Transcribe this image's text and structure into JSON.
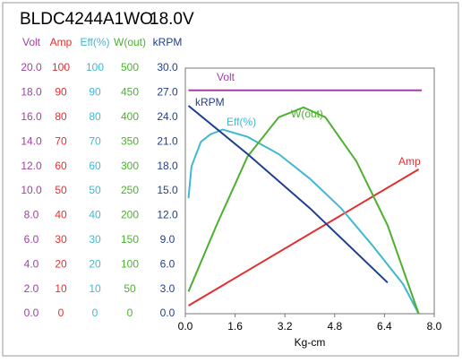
{
  "chart_data": {
    "type": "line",
    "title": "BLDC4244A1WO",
    "subtitle": "18.0V",
    "x_label": "Kg-cm",
    "xlim": [
      0,
      8
    ],
    "xticks": [
      {
        "value": 0,
        "label": "0.0"
      },
      1.6,
      3.2,
      4.8,
      6.4,
      {
        "value": 8,
        "label": "8.0"
      }
    ],
    "axes": [
      {
        "label": "Volt",
        "color": "#a040a0",
        "ylim": [
          0,
          20
        ],
        "yticks": [
          {
            "value": 0,
            "label": "0.0"
          },
          {
            "value": 2,
            "label": "2.0"
          },
          {
            "value": 4,
            "label": "4.0"
          },
          {
            "value": 6,
            "label": "6.0"
          },
          {
            "value": 8,
            "label": "8.0"
          },
          {
            "value": 10,
            "label": "10.0"
          },
          {
            "value": 12,
            "label": "12.0"
          },
          {
            "value": 14,
            "label": "14.0"
          },
          {
            "value": 16,
            "label": "16.0"
          },
          {
            "value": 18,
            "label": "18.0"
          },
          {
            "value": 20,
            "label": "20.0"
          }
        ]
      },
      {
        "label": "Amp",
        "color": "#e03030",
        "ylim": [
          0,
          100
        ],
        "yticks": [
          0,
          10,
          20,
          30,
          40,
          50,
          60,
          70,
          80,
          90,
          100
        ]
      },
      {
        "label": "Eff(%)",
        "color": "#40b8d0",
        "ylim": [
          0,
          100
        ],
        "yticks": [
          0,
          10,
          20,
          30,
          40,
          50,
          60,
          70,
          80,
          90,
          100
        ]
      },
      {
        "label": "W(out)",
        "color": "#4cb030",
        "ylim": [
          0,
          500
        ],
        "yticks": [
          0,
          50,
          100,
          150,
          200,
          250,
          300,
          350,
          400,
          450,
          500
        ]
      },
      {
        "label": "kRPM",
        "color": "#1f3f8f",
        "ylim": [
          0,
          30
        ],
        "yticks": [
          {
            "value": 0,
            "label": "0.0"
          },
          {
            "value": 3,
            "label": "3.0"
          },
          {
            "value": 6,
            "label": "6.0"
          },
          {
            "value": 9,
            "label": "9.0"
          },
          {
            "value": 12,
            "label": "12.0"
          },
          {
            "value": 15,
            "label": "15.0"
          },
          {
            "value": 18,
            "label": "18.0"
          },
          {
            "value": 21,
            "label": "21.0"
          },
          {
            "value": 24,
            "label": "24.0"
          },
          {
            "value": 27,
            "label": "27.0"
          },
          {
            "value": 30,
            "label": "30.0"
          }
        ]
      }
    ],
    "series": [
      {
        "name": "Volt",
        "color": "#a040a0",
        "axis": 0,
        "x": [
          0.1,
          7.6
        ],
        "values": [
          18.2,
          18.2
        ]
      },
      {
        "name": "Amp",
        "color": "#e03030",
        "axis": 1,
        "x": [
          0.1,
          7.5
        ],
        "values": [
          3.3,
          58.8
        ]
      },
      {
        "name": "Eff(%)",
        "color": "#40b8d0",
        "axis": 2,
        "x": [
          0.1,
          0.2,
          0.5,
          0.8,
          1.2,
          2,
          3,
          4,
          5,
          6,
          7,
          7.5
        ],
        "values": [
          47,
          60,
          70,
          73,
          75,
          72,
          65,
          55,
          43,
          28,
          12,
          0
        ]
      },
      {
        "name": "W(out)",
        "color": "#4cb030",
        "axis": 3,
        "x": [
          0.1,
          1,
          2,
          3,
          3.8,
          4.5,
          5.5,
          6.5,
          7.5
        ],
        "values": [
          45,
          180,
          320,
          400,
          420,
          400,
          310,
          180,
          0
        ]
      },
      {
        "name": "kRPM",
        "color": "#1f3f8f",
        "axis": 4,
        "x": [
          0.1,
          2,
          4,
          6.5
        ],
        "values": [
          25.4,
          19.5,
          12.9,
          3.8
        ]
      }
    ]
  }
}
